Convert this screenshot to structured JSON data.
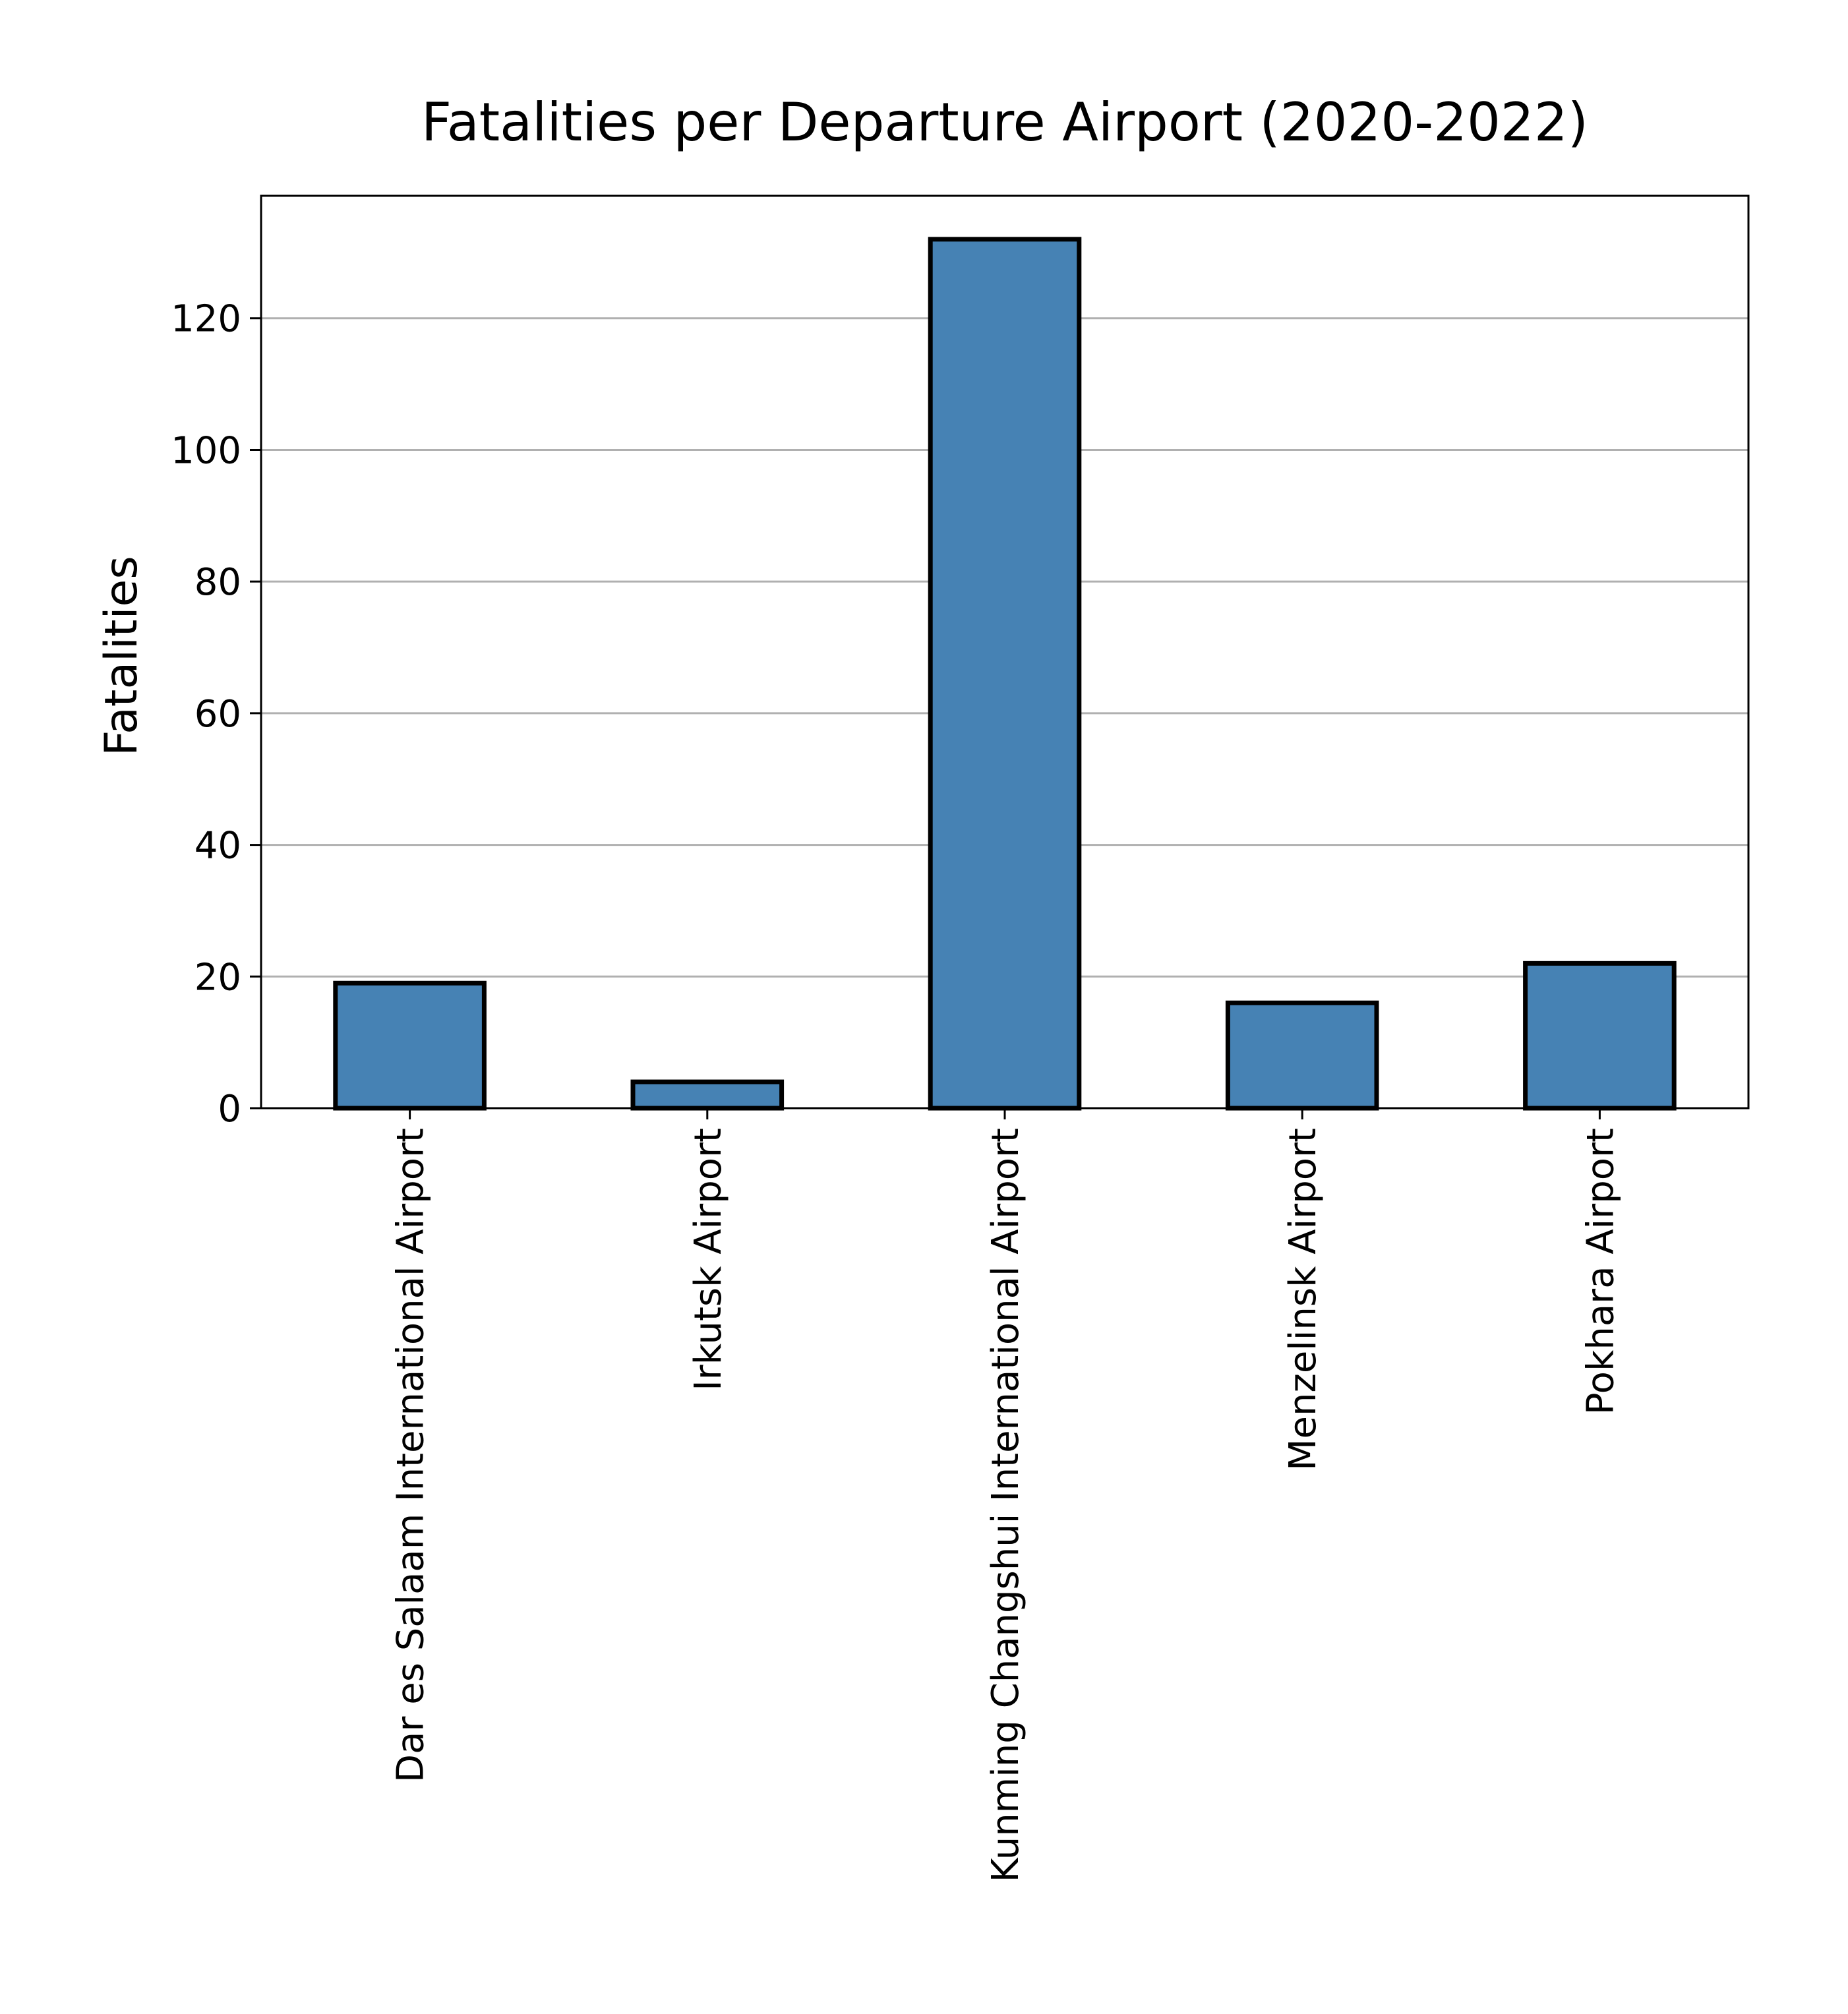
{
  "chart_data": {
    "type": "bar",
    "title": "Fatalities per Departure Airport (2020-2022)",
    "xlabel": "",
    "ylabel": "Fatalities",
    "categories": [
      "Dar es Salaam International Airport",
      "Irkutsk Airport",
      "Kunming Changshui International Airport",
      "Menzelinsk Airport",
      "Pokhara Airport"
    ],
    "values": [
      19,
      4,
      132,
      16,
      22
    ],
    "ylim": [
      0,
      138.6
    ],
    "yticks": [
      0,
      20,
      40,
      60,
      80,
      100,
      120
    ],
    "grid": "y",
    "bar_color": "#4682b4",
    "edge_color": "#000000",
    "x_tick_rotation": "vertical"
  }
}
